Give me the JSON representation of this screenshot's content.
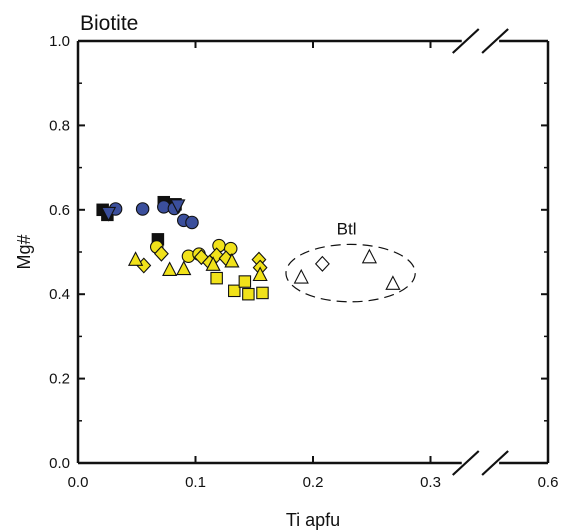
{
  "chart_data": {
    "type": "scatter",
    "title": "Biotite",
    "xlabel": "Ti apfu",
    "ylabel": "Mg#",
    "x_ticks": [
      "0.0",
      "0.1",
      "0.2",
      "0.3",
      "0.6"
    ],
    "y_ticks": [
      "0.0",
      "0.2",
      "0.4",
      "0.6",
      "0.8",
      "1.0"
    ],
    "xlim": [
      0,
      0.6
    ],
    "x_axis_break": {
      "between": [
        0.3,
        0.6
      ]
    },
    "ylim": [
      0,
      1.0
    ],
    "grid": false,
    "annotation": {
      "label": "Btl",
      "ellipse_center": [
        0.232,
        0.45
      ],
      "ellipse_radii": [
        0.055,
        0.068
      ]
    },
    "series": [
      {
        "marker": "square",
        "color": "#111111",
        "points": [
          [
            0.021,
            0.6
          ],
          [
            0.025,
            0.588
          ],
          [
            0.068,
            0.53
          ],
          [
            0.073,
            0.618
          ],
          [
            0.083,
            0.613
          ]
        ]
      },
      {
        "marker": "circle",
        "color": "#3b4f9c",
        "points": [
          [
            0.032,
            0.602
          ],
          [
            0.055,
            0.602
          ],
          [
            0.073,
            0.607
          ],
          [
            0.082,
            0.603
          ],
          [
            0.09,
            0.575
          ],
          [
            0.097,
            0.57
          ]
        ]
      },
      {
        "marker": "triangle-down",
        "color": "#3b4f9c",
        "points": [
          [
            0.026,
            0.592
          ],
          [
            0.085,
            0.61
          ]
        ]
      },
      {
        "marker": "circle",
        "color": "#f1e21a",
        "points": [
          [
            0.067,
            0.512
          ],
          [
            0.094,
            0.49
          ],
          [
            0.103,
            0.495
          ],
          [
            0.12,
            0.515
          ],
          [
            0.13,
            0.508
          ]
        ]
      },
      {
        "marker": "diamond",
        "color": "#f1e21a",
        "points": [
          [
            0.056,
            0.468
          ],
          [
            0.071,
            0.496
          ],
          [
            0.105,
            0.488
          ],
          [
            0.112,
            0.475
          ],
          [
            0.118,
            0.492
          ],
          [
            0.126,
            0.485
          ],
          [
            0.154,
            0.482
          ],
          [
            0.155,
            0.463
          ]
        ]
      },
      {
        "marker": "triangle",
        "color": "#f1e21a",
        "points": [
          [
            0.049,
            0.482
          ],
          [
            0.078,
            0.458
          ],
          [
            0.09,
            0.46
          ],
          [
            0.115,
            0.47
          ],
          [
            0.131,
            0.478
          ],
          [
            0.155,
            0.446
          ]
        ]
      },
      {
        "marker": "square",
        "color": "#f1e21a",
        "points": [
          [
            0.118,
            0.438
          ],
          [
            0.133,
            0.408
          ],
          [
            0.142,
            0.43
          ],
          [
            0.145,
            0.4
          ],
          [
            0.157,
            0.403
          ]
        ]
      },
      {
        "marker": "triangle",
        "color": "#ffffff",
        "points": [
          [
            0.19,
            0.44
          ],
          [
            0.248,
            0.488
          ],
          [
            0.268,
            0.425
          ]
        ]
      },
      {
        "marker": "diamond",
        "color": "#ffffff",
        "points": [
          [
            0.208,
            0.472
          ]
        ]
      }
    ]
  }
}
